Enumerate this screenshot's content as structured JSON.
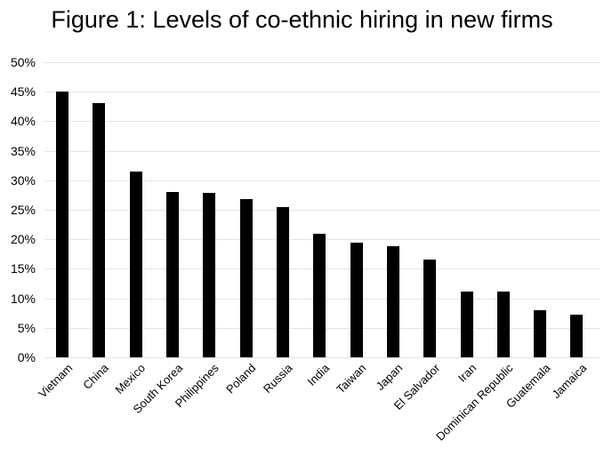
{
  "figure": {
    "title": "Figure 1: Levels of co-ethnic hiring in new firms"
  },
  "chart_data": {
    "type": "bar",
    "title": "Figure 1: Levels of co-ethnic hiring in new firms",
    "categories": [
      "Vietnam",
      "China",
      "Mexico",
      "South Korea",
      "Philippines",
      "Poland",
      "Russia",
      "India",
      "Taiwan",
      "Japan",
      "El Salvador",
      "Iran",
      "Dominican Republic",
      "Guatemala",
      "Jamaica"
    ],
    "values": [
      45,
      43,
      31.5,
      28,
      27.8,
      26.8,
      25.4,
      21,
      19.5,
      18.8,
      16.5,
      11.2,
      11.2,
      8,
      7.2
    ],
    "xlabel": "",
    "ylabel": "",
    "ylim": [
      0,
      50
    ],
    "ytick_step": 5,
    "yticklabels": [
      "0%",
      "5%",
      "10%",
      "15%",
      "20%",
      "25%",
      "30%",
      "35%",
      "40%",
      "45%",
      "50%"
    ],
    "grid": true,
    "legend": "none",
    "bar_color": "#000000",
    "gridline_color": "#e3e3e3",
    "background_color": "#ffffff",
    "text_color": "#000000"
  }
}
